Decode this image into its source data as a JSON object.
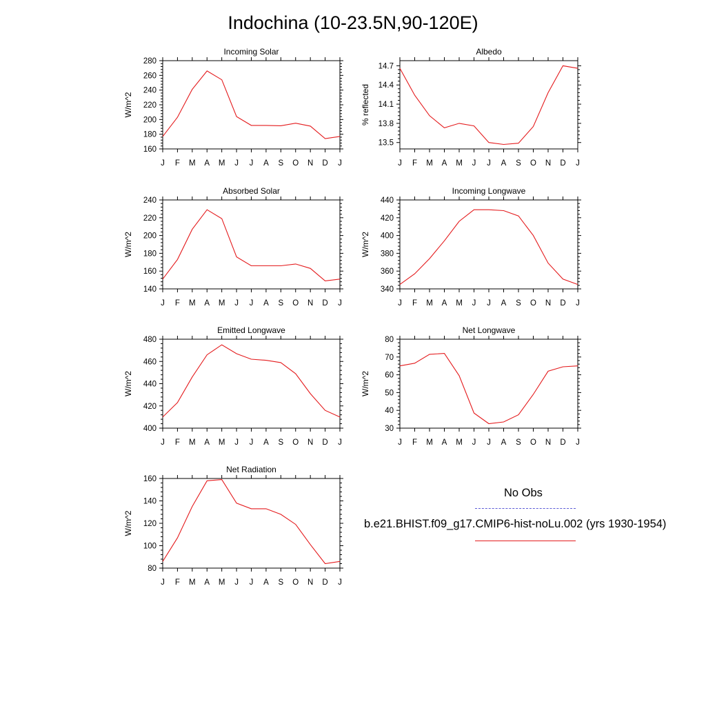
{
  "title": "Indochina (10-23.5N,90-120E)",
  "colors": {
    "model": "#e41a1c",
    "obs": "#5b5bd6"
  },
  "legend": {
    "obs_label": "No Obs",
    "model_label": "b.e21.BHIST.f09_g17.CMIP6-hist-noLu.002 (yrs 1930-1954)"
  },
  "chart_data": [
    {
      "type": "line",
      "title": "Incoming Solar",
      "ylabel": "W/m^2",
      "categories": [
        "J",
        "F",
        "M",
        "A",
        "M",
        "J",
        "J",
        "A",
        "S",
        "O",
        "N",
        "D",
        "J"
      ],
      "ylim": [
        160,
        280
      ],
      "yticks": [
        160,
        180,
        200,
        220,
        240,
        260,
        280
      ],
      "values": [
        177,
        203,
        241,
        266,
        254,
        204,
        192,
        192,
        191.5,
        195,
        191,
        174,
        177
      ]
    },
    {
      "type": "line",
      "title": "Albedo",
      "ylabel": "% reflected",
      "categories": [
        "J",
        "F",
        "M",
        "A",
        "M",
        "J",
        "J",
        "A",
        "S",
        "O",
        "N",
        "D",
        "J"
      ],
      "ylim": [
        13.4,
        14.78
      ],
      "yticks": [
        13.5,
        13.8,
        14.1,
        14.4,
        14.7
      ],
      "values": [
        14.66,
        14.24,
        13.92,
        13.73,
        13.8,
        13.76,
        13.5,
        13.47,
        13.49,
        13.75,
        14.28,
        14.7,
        14.66
      ]
    },
    {
      "type": "line",
      "title": "Absorbed Solar",
      "ylabel": "W/m^2",
      "categories": [
        "J",
        "F",
        "M",
        "A",
        "M",
        "J",
        "J",
        "A",
        "S",
        "O",
        "N",
        "D",
        "J"
      ],
      "ylim": [
        140,
        240
      ],
      "yticks": [
        140,
        160,
        180,
        200,
        220,
        240
      ],
      "values": [
        151,
        173,
        207,
        229,
        219,
        176,
        166,
        166,
        166,
        168,
        163,
        149,
        151
      ]
    },
    {
      "type": "line",
      "title": "Incoming Longwave",
      "ylabel": "W/m^2",
      "categories": [
        "J",
        "F",
        "M",
        "A",
        "M",
        "J",
        "J",
        "A",
        "S",
        "O",
        "N",
        "D",
        "J"
      ],
      "ylim": [
        340,
        440
      ],
      "yticks": [
        340,
        360,
        380,
        400,
        420,
        440
      ],
      "values": [
        345,
        357,
        374,
        394,
        416,
        429,
        429,
        428,
        422,
        400,
        369,
        351,
        345
      ]
    },
    {
      "type": "line",
      "title": "Emitted Longwave",
      "ylabel": "W/m^2",
      "categories": [
        "J",
        "F",
        "M",
        "A",
        "M",
        "J",
        "J",
        "A",
        "S",
        "O",
        "N",
        "D",
        "J"
      ],
      "ylim": [
        400,
        480
      ],
      "yticks": [
        400,
        420,
        440,
        460,
        480
      ],
      "values": [
        410,
        423,
        446,
        466,
        475,
        467,
        462,
        461,
        459,
        449,
        431,
        416,
        410
      ]
    },
    {
      "type": "line",
      "title": "Net Longwave",
      "ylabel": "W/m^2",
      "categories": [
        "J",
        "F",
        "M",
        "A",
        "M",
        "J",
        "J",
        "A",
        "S",
        "O",
        "N",
        "D",
        "J"
      ],
      "ylim": [
        30,
        80
      ],
      "yticks": [
        30,
        40,
        50,
        60,
        70,
        80
      ],
      "values": [
        65,
        66.5,
        71.5,
        72,
        59.5,
        38.5,
        32.5,
        33.5,
        37.5,
        49,
        62,
        64.5,
        65
      ]
    },
    {
      "type": "line",
      "title": "Net Radiation",
      "ylabel": "W/m^2",
      "categories": [
        "J",
        "F",
        "M",
        "A",
        "M",
        "J",
        "J",
        "A",
        "S",
        "O",
        "N",
        "D",
        "J"
      ],
      "ylim": [
        80,
        160
      ],
      "yticks": [
        80,
        100,
        120,
        140,
        160
      ],
      "values": [
        86,
        107,
        135,
        158,
        159,
        138,
        133,
        133,
        128,
        119,
        101,
        84,
        86
      ]
    }
  ]
}
